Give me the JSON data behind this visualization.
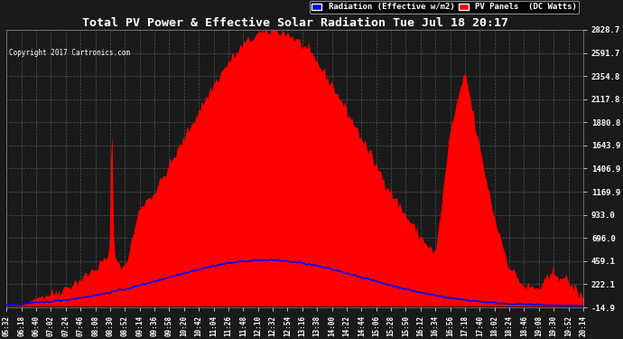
{
  "title": "Total PV Power & Effective Solar Radiation Tue Jul 18 20:17",
  "copyright": "Copyright 2017 Cartronics.com",
  "legend_radiation": "Radiation (Effective w/m2)",
  "legend_pv": "PV Panels  (DC Watts)",
  "bg_color": "#1a1a1a",
  "plot_bg_color": "#1a1a1a",
  "title_color": "#ffffff",
  "grid_color": "#888888",
  "red_color": "#ff0000",
  "blue_color": "#0000ff",
  "ylabel_right_values": [
    2828.7,
    2591.7,
    2354.8,
    2117.8,
    1880.8,
    1643.9,
    1406.9,
    1169.9,
    933.0,
    696.0,
    459.1,
    222.1,
    -14.9
  ],
  "ymin": -14.9,
  "ymax": 2828.7,
  "x_tick_labels": [
    "05:32",
    "06:18",
    "06:40",
    "07:02",
    "07:24",
    "07:46",
    "08:08",
    "08:30",
    "08:52",
    "09:14",
    "09:36",
    "09:58",
    "10:20",
    "10:42",
    "11:04",
    "11:26",
    "11:48",
    "12:10",
    "12:32",
    "12:54",
    "13:16",
    "13:38",
    "14:00",
    "14:22",
    "14:44",
    "15:06",
    "15:28",
    "15:50",
    "16:12",
    "16:34",
    "16:56",
    "17:18",
    "17:40",
    "18:02",
    "18:24",
    "18:46",
    "19:08",
    "19:30",
    "19:52",
    "20:14"
  ],
  "n_ticks": 40
}
